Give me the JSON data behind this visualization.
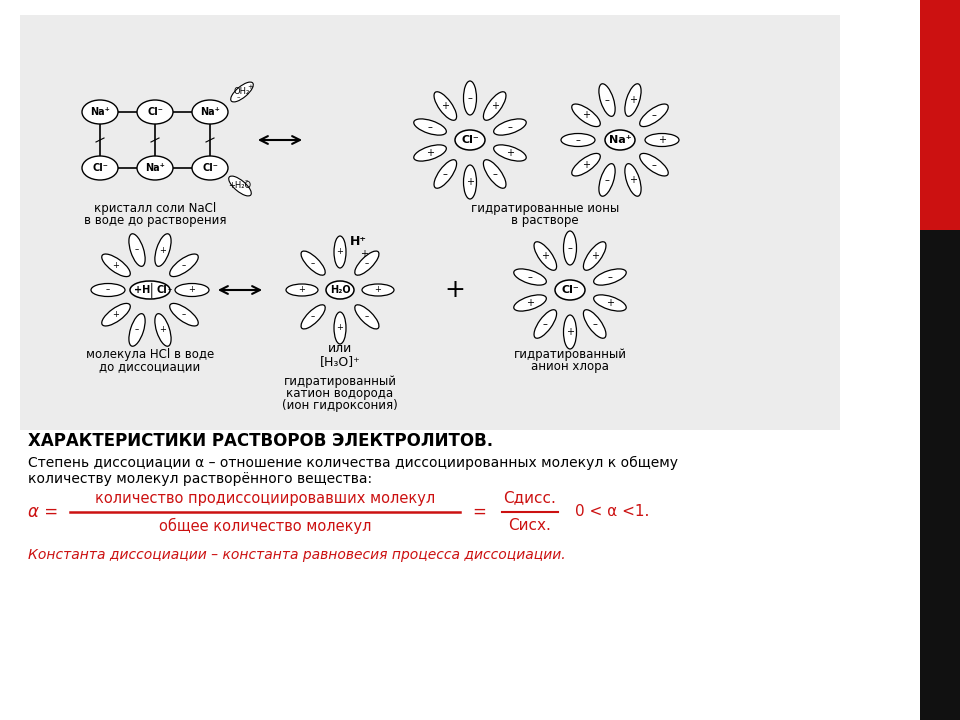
{
  "bg_color": "#ffffff",
  "gray_bg": "#ececec",
  "red_color": "#cc1111",
  "title_bold": "ХАРАКТЕРИСТИКИ РАСТВОРОВ ЭЛЕКТРОЛИТОВ.",
  "desc_text_1": "Степень диссоциации α – отношение количества диссоциированных молекул к общему",
  "desc_text_2": "количеству молекул растворённого вещества:",
  "formula_alpha": "α =",
  "formula_numerator": "количество продиссоциировавших молекул",
  "formula_denominator": "общее количество молекул",
  "formula_equals": "=",
  "formula_c_diss": "Сдисс.",
  "formula_c_isch": "Сисх.",
  "formula_inequality": "0 < α <1.",
  "constant_text": "Константа диссоциации – константа равновесия процесса диссоциации.",
  "cap1_1": "кристалл соли NaCl",
  "cap1_2": "в воде до растворения",
  "cap2_1": "гидратированные ионы",
  "cap2_2": "в растворе",
  "cap3_1": "молекула HCl в воде",
  "cap3_2": "до диссоциации",
  "cap4_1": "гидратированный",
  "cap4_2": "катион водорода",
  "cap4_3": "(ион гидроксония)",
  "cap5_1": "гидратированный",
  "cap5_2": "анион хлора"
}
